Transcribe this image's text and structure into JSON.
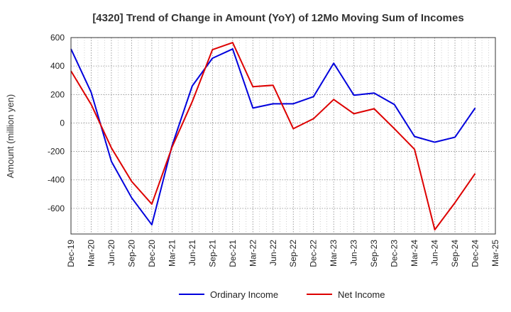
{
  "chart_data": {
    "type": "line",
    "title": "[4320]  Trend of Change in Amount (YoY) of 12Mo Moving Sum of Incomes",
    "xlabel": "",
    "ylabel": "Amount (million yen)",
    "ylim": [
      -780,
      600
    ],
    "yticks": [
      600,
      400,
      200,
      0,
      -200,
      -400,
      -600
    ],
    "ytick_labels": [
      "600",
      "400",
      "200",
      "0",
      "-200",
      "-400",
      "-600"
    ],
    "categories": [
      "Dec-19",
      "Mar-20",
      "Jun-20",
      "Sep-20",
      "Dec-20",
      "Mar-21",
      "Jun-21",
      "Sep-21",
      "Dec-21",
      "Mar-22",
      "Jun-22",
      "Sep-22",
      "Dec-22",
      "Mar-23",
      "Jun-23",
      "Sep-23",
      "Dec-23",
      "Mar-24",
      "Jun-24",
      "Sep-24",
      "Dec-24",
      "Mar-25"
    ],
    "series": [
      {
        "name": "Ordinary Income",
        "color": "#0000dd",
        "values": [
          520,
          215,
          -270,
          -525,
          -715,
          -160,
          260,
          455,
          520,
          105,
          135,
          135,
          185,
          420,
          195,
          210,
          130,
          -95,
          -135,
          -100,
          105,
          null
        ]
      },
      {
        "name": "Net Income",
        "color": "#dd0000",
        "values": [
          365,
          130,
          -175,
          -410,
          -570,
          -170,
          150,
          515,
          565,
          255,
          265,
          -40,
          30,
          165,
          65,
          100,
          -40,
          -185,
          -750,
          -560,
          -355,
          null
        ]
      }
    ],
    "grid": true,
    "legend_position": "bottom"
  }
}
